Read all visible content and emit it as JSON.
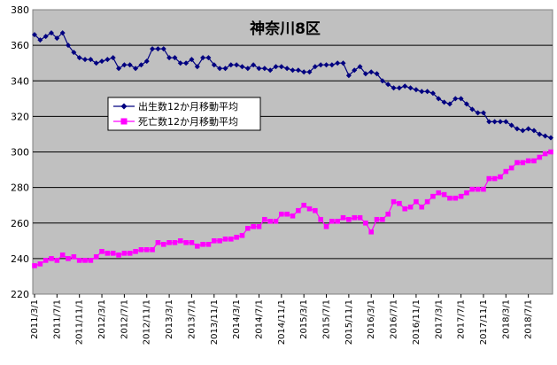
{
  "chart_data": {
    "type": "line",
    "title": "神奈川8区",
    "xlabel": "",
    "ylabel": "",
    "ylim": [
      220,
      380
    ],
    "y_ticks": [
      220,
      240,
      260,
      280,
      300,
      320,
      340,
      360,
      380
    ],
    "grid": "horizontal",
    "plot_background": "#c0c0c0",
    "legend_position": "top-left",
    "x_tick_labels": [
      "2011/3/1",
      "2011/7/1",
      "2011/11/1",
      "2012/3/1",
      "2012/7/1",
      "2012/11/1",
      "2013/3/1",
      "2013/7/1",
      "2013/11/1",
      "2014/3/1",
      "2014/7/1",
      "2014/11/1",
      "2015/3/1",
      "2015/7/1",
      "2015/11/1",
      "2016/3/1",
      "2016/7/1",
      "2016/11/1",
      "2017/3/1",
      "2017/7/1",
      "2017/11/1",
      "2018/3/1",
      "2018/7/1"
    ],
    "x_start": "2011/3",
    "series": [
      {
        "name": "出生数12か月移動平均",
        "color": "#000080",
        "marker": "diamond",
        "values": [
          366,
          363,
          365,
          367,
          364,
          367,
          360,
          356,
          353,
          352,
          352,
          350,
          351,
          352,
          353,
          347,
          349,
          349,
          347,
          349,
          351,
          358,
          358,
          358,
          353,
          353,
          350,
          350,
          352,
          348,
          353,
          353,
          349,
          347,
          347,
          349,
          349,
          348,
          347,
          349,
          347,
          347,
          346,
          348,
          348,
          347,
          346,
          346,
          345,
          345,
          348,
          349,
          349,
          349,
          350,
          350,
          343,
          346,
          348,
          344,
          345,
          344,
          340,
          338,
          336,
          336,
          337,
          336,
          335,
          334,
          334,
          333,
          330,
          328,
          327,
          330,
          330,
          327,
          324,
          322,
          322,
          317,
          317,
          317,
          317,
          315,
          313,
          312,
          313,
          312,
          310,
          309,
          308
        ]
      },
      {
        "name": "死亡数12か月移動平均",
        "color": "#ff00ff",
        "marker": "square",
        "values": [
          236,
          237,
          239,
          240,
          239,
          242,
          240,
          241,
          239,
          239,
          239,
          241,
          244,
          243,
          243,
          242,
          243,
          243,
          244,
          245,
          245,
          245,
          249,
          248,
          249,
          249,
          250,
          249,
          249,
          247,
          248,
          248,
          250,
          250,
          251,
          251,
          252,
          253,
          257,
          258,
          258,
          262,
          261,
          261,
          265,
          265,
          264,
          267,
          270,
          268,
          267,
          262,
          258,
          261,
          261,
          263,
          262,
          263,
          263,
          260,
          255,
          262,
          262,
          265,
          272,
          271,
          268,
          269,
          272,
          269,
          272,
          275,
          277,
          276,
          274,
          274,
          275,
          277,
          279,
          279,
          279,
          285,
          285,
          286,
          289,
          291,
          294,
          294,
          295,
          295,
          297,
          299,
          300
        ]
      }
    ]
  }
}
